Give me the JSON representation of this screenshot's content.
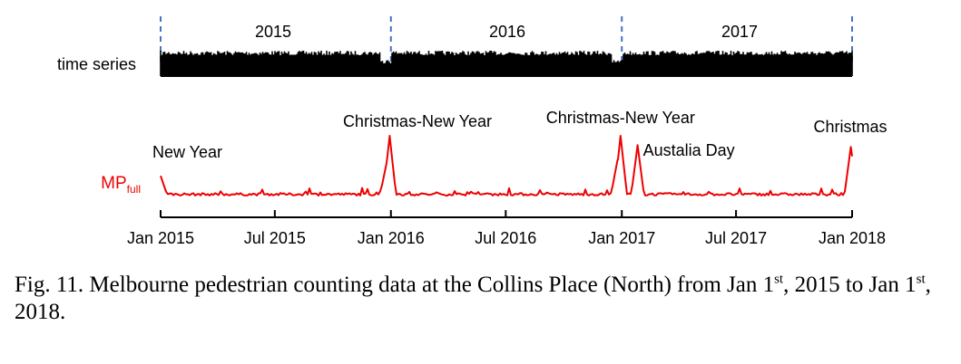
{
  "chart_data": [
    {
      "type": "area",
      "row_label": "time series",
      "segments": [
        "2015",
        "2016",
        "2017"
      ],
      "x_range": [
        "2015-01-01",
        "2018-01-01"
      ],
      "dips": [
        "2015-12-25",
        "2016-12-25"
      ]
    },
    {
      "type": "line",
      "series": [
        {
          "name_main": "MP",
          "name_sub": "full"
        }
      ],
      "x_range": [
        "2015-01-01",
        "2018-01-01"
      ],
      "xticks": [
        {
          "date": "2015-01-01",
          "label": "Jan 2015"
        },
        {
          "date": "2015-07-01",
          "label": "Jul 2015"
        },
        {
          "date": "2016-01-01",
          "label": "Jan 2016"
        },
        {
          "date": "2016-07-01",
          "label": "Jul 2016"
        },
        {
          "date": "2017-01-01",
          "label": "Jan 2017"
        },
        {
          "date": "2017-07-01",
          "label": "Jul 2017"
        },
        {
          "date": "2018-01-01",
          "label": "Jan 2018"
        }
      ],
      "baseline": 0.05,
      "peaks": [
        {
          "date": "2015-01-01",
          "value": 0.35
        },
        {
          "date": "2015-12-25",
          "value": 0.55
        },
        {
          "date": "2015-12-30",
          "value": 1.0
        },
        {
          "date": "2016-12-25",
          "value": 0.6
        },
        {
          "date": "2016-12-30",
          "value": 1.0
        },
        {
          "date": "2017-01-26",
          "value": 0.85
        },
        {
          "date": "2017-12-30",
          "value": 0.82
        }
      ],
      "annotations": [
        {
          "text": "New Year",
          "date": "2015-01-01"
        },
        {
          "text": "Christmas-New Year",
          "date": "2015-12-30"
        },
        {
          "text": "Christmas-New Year",
          "date": "2016-12-30"
        },
        {
          "text": "Austalia Day",
          "date": "2017-01-26"
        },
        {
          "text": "Christmas",
          "date": "2017-12-25"
        }
      ]
    }
  ],
  "caption": {
    "part1": "Fig. 11. Melbourne pedestrian counting data at the Collins Place (North) from Jan 1",
    "sup1": "st",
    "part2": ", 2015 to Jan 1",
    "sup2": "st",
    "part3": ", 2018."
  },
  "colors": {
    "series": "#ee0000",
    "divider": "#4472c4",
    "ts": "#000000",
    "axis": "#000000"
  }
}
